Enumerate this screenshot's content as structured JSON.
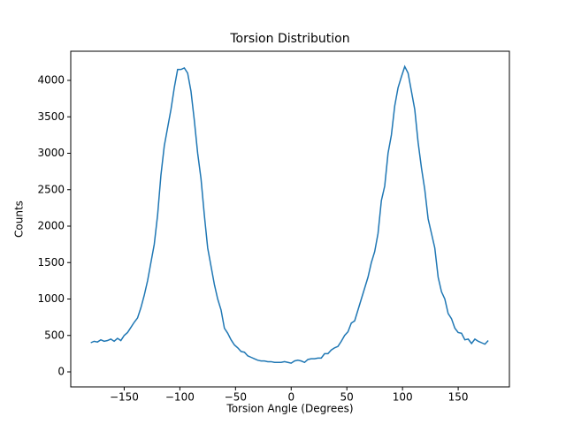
{
  "chart_data": {
    "type": "line",
    "title": "Torsion Distribution",
    "x_label": "Torsion Angle (Degrees)",
    "y_label": "Counts",
    "x": [
      -180,
      -177,
      -174,
      -171,
      -168,
      -165,
      -162,
      -159,
      -156,
      -153,
      -150,
      -147,
      -144,
      -141,
      -138,
      -135,
      -132,
      -129,
      -126,
      -123,
      -120,
      -117,
      -114,
      -111,
      -108,
      -105,
      -102,
      -99,
      -96,
      -93,
      -90,
      -87,
      -84,
      -81,
      -78,
      -75,
      -72,
      -69,
      -66,
      -63,
      -60,
      -57,
      -54,
      -51,
      -48,
      -45,
      -42,
      -39,
      -36,
      -33,
      -30,
      -27,
      -24,
      -21,
      -18,
      -15,
      -12,
      -9,
      -6,
      -3,
      0,
      3,
      6,
      9,
      12,
      15,
      18,
      21,
      24,
      27,
      30,
      33,
      36,
      39,
      42,
      45,
      48,
      51,
      54,
      57,
      60,
      63,
      66,
      69,
      72,
      75,
      78,
      81,
      84,
      87,
      90,
      93,
      96,
      99,
      102,
      105,
      108,
      111,
      114,
      117,
      120,
      123,
      126,
      129,
      132,
      135,
      138,
      141,
      144,
      147,
      150,
      153,
      156,
      159,
      162,
      165,
      168,
      171,
      174,
      177
    ],
    "values": [
      400,
      420,
      410,
      440,
      420,
      430,
      450,
      420,
      460,
      430,
      500,
      540,
      610,
      680,
      740,
      880,
      1050,
      1250,
      1500,
      1750,
      2150,
      2700,
      3100,
      3350,
      3600,
      3900,
      4150,
      4150,
      4170,
      4100,
      3850,
      3450,
      3000,
      2650,
      2150,
      1700,
      1450,
      1200,
      1000,
      850,
      600,
      530,
      440,
      370,
      330,
      280,
      270,
      220,
      200,
      180,
      160,
      150,
      150,
      140,
      140,
      130,
      130,
      130,
      140,
      130,
      120,
      150,
      160,
      150,
      130,
      170,
      180,
      180,
      190,
      190,
      250,
      250,
      300,
      330,
      350,
      420,
      500,
      550,
      670,
      700,
      850,
      1000,
      1150,
      1300,
      1500,
      1650,
      1900,
      2350,
      2550,
      3000,
      3250,
      3650,
      3900,
      4050,
      4190,
      4100,
      3850,
      3600,
      3150,
      2800,
      2500,
      2100,
      1900,
      1700,
      1300,
      1100,
      1000,
      800,
      730,
      600,
      540,
      530,
      440,
      450,
      390,
      450,
      420,
      400,
      380,
      430
    ],
    "color": "#1f77b4",
    "xlim": [
      -198,
      196
    ],
    "ylim": [
      -206,
      4400
    ],
    "xticks": [
      {
        "value": -150,
        "label": "−150"
      },
      {
        "value": -100,
        "label": "−100"
      },
      {
        "value": -50,
        "label": "−50"
      },
      0,
      50,
      100,
      150
    ],
    "yticks": [
      0,
      500,
      1000,
      1500,
      2000,
      2500,
      3000,
      3500,
      4000
    ]
  }
}
